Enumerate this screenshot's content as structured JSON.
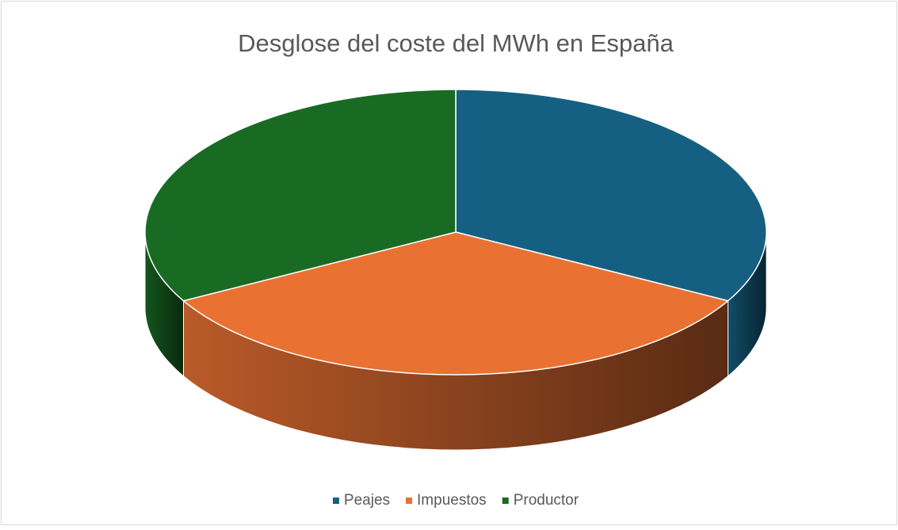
{
  "chart_data": {
    "type": "pie",
    "title": "Desglose del coste del MWh en España",
    "categories": [
      "Peajes",
      "Impuestos",
      "Productor"
    ],
    "values": [
      33,
      34,
      33
    ],
    "colors": [
      "#156082",
      "#e97132",
      "#196b24"
    ],
    "legend": "bottom"
  }
}
